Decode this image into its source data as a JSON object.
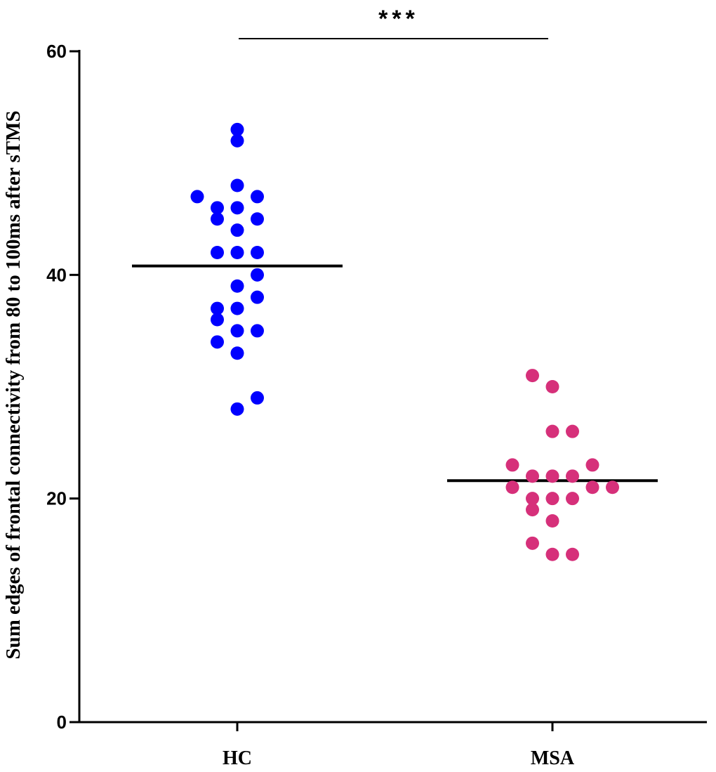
{
  "chart_data": {
    "type": "scatter",
    "ylabel": "Sum edges of frontal connectivity from 80 to 100ms after sTMS",
    "xlabel": "",
    "ylim": [
      0,
      60
    ],
    "yticks": [
      0,
      20,
      40,
      60
    ],
    "categories": [
      "HC",
      "MSA"
    ],
    "grid": false,
    "significance": {
      "label": "***",
      "between": [
        "HC",
        "MSA"
      ]
    },
    "series": [
      {
        "category": "HC",
        "color": "#0000ff",
        "mean": 40.8,
        "points": [
          {
            "x": 0,
            "y": 53
          },
          {
            "x": 0,
            "y": 52
          },
          {
            "x": -2,
            "y": 47
          },
          {
            "x": 0,
            "y": 48
          },
          {
            "x": 1,
            "y": 47
          },
          {
            "x": -1,
            "y": 46
          },
          {
            "x": 0,
            "y": 46
          },
          {
            "x": -1,
            "y": 45
          },
          {
            "x": 1,
            "y": 45
          },
          {
            "x": 0,
            "y": 44
          },
          {
            "x": -1,
            "y": 42
          },
          {
            "x": 0,
            "y": 42
          },
          {
            "x": 1,
            "y": 42
          },
          {
            "x": 1,
            "y": 40
          },
          {
            "x": 0,
            "y": 39
          },
          {
            "x": 1,
            "y": 38
          },
          {
            "x": -1,
            "y": 37
          },
          {
            "x": 0,
            "y": 37
          },
          {
            "x": -1,
            "y": 36
          },
          {
            "x": 0,
            "y": 35
          },
          {
            "x": 1,
            "y": 35
          },
          {
            "x": -1,
            "y": 34
          },
          {
            "x": 0,
            "y": 33
          },
          {
            "x": 1,
            "y": 29
          },
          {
            "x": 0,
            "y": 28
          }
        ]
      },
      {
        "category": "MSA",
        "color": "#d6307a",
        "mean": 21.6,
        "points": [
          {
            "x": -1,
            "y": 31
          },
          {
            "x": 0,
            "y": 30
          },
          {
            "x": 0,
            "y": 26
          },
          {
            "x": 1,
            "y": 26
          },
          {
            "x": -2,
            "y": 23
          },
          {
            "x": 2,
            "y": 23
          },
          {
            "x": -1,
            "y": 22
          },
          {
            "x": 0,
            "y": 22
          },
          {
            "x": 1,
            "y": 22
          },
          {
            "x": -2,
            "y": 21
          },
          {
            "x": 2,
            "y": 21
          },
          {
            "x": 3,
            "y": 21
          },
          {
            "x": -1,
            "y": 20
          },
          {
            "x": 0,
            "y": 20
          },
          {
            "x": 1,
            "y": 20
          },
          {
            "x": -1,
            "y": 19
          },
          {
            "x": 0,
            "y": 18
          },
          {
            "x": -1,
            "y": 16
          },
          {
            "x": 0,
            "y": 15
          },
          {
            "x": 1,
            "y": 15
          }
        ]
      }
    ]
  }
}
